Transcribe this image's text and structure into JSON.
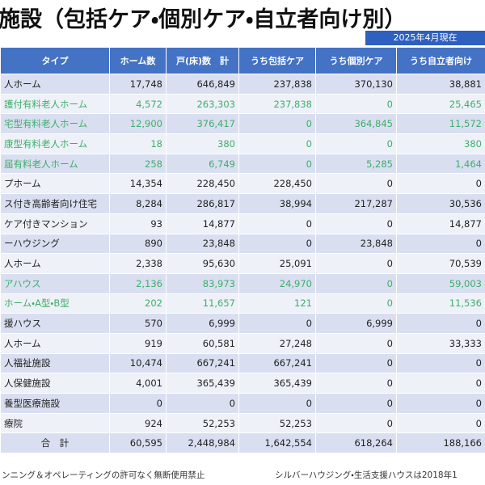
{
  "header": {
    "title": "施設（包括ケア・個別ケア・自立者向け別）",
    "date": "2025年4月現在"
  },
  "table": {
    "columns": [
      "タイプ",
      "ホーム数",
      "戸(床)数　計",
      "うち包括ケア",
      "うち個別ケア",
      "うち自立者向け"
    ],
    "rows": [
      {
        "cells": [
          "人ホーム",
          "17,748",
          "646,849",
          "237,838",
          "370,130",
          "38,881"
        ],
        "color": "#222222"
      },
      {
        "cells": [
          "護付有料老人ホーム",
          "4,572",
          "263,303",
          "237,838",
          "0",
          "25,465"
        ],
        "color": "#3fae6a"
      },
      {
        "cells": [
          "宅型有料老人ホーム",
          "12,900",
          "376,417",
          "0",
          "364,845",
          "11,572"
        ],
        "color": "#3fae6a"
      },
      {
        "cells": [
          "康型有料老人ホーム",
          "18",
          "380",
          "0",
          "0",
          "380"
        ],
        "color": "#3fae6a"
      },
      {
        "cells": [
          "届有料老人ホーム",
          "258",
          "6,749",
          "0",
          "5,285",
          "1,464"
        ],
        "color": "#3fae6a"
      },
      {
        "cells": [
          "プホーム",
          "14,354",
          "228,450",
          "228,450",
          "0",
          "0"
        ],
        "color": "#222222"
      },
      {
        "cells": [
          "ス付き高齢者向け住宅",
          "8,284",
          "286,817",
          "38,994",
          "217,287",
          "30,536"
        ],
        "color": "#222222"
      },
      {
        "cells": [
          "ケア付きマンション",
          "93",
          "14,877",
          "0",
          "0",
          "14,877"
        ],
        "color": "#222222"
      },
      {
        "cells": [
          "ーハウジング",
          "890",
          "23,848",
          "0",
          "23,848",
          "0"
        ],
        "color": "#222222"
      },
      {
        "cells": [
          "人ホーム",
          "2,338",
          "95,630",
          "25,091",
          "0",
          "70,539"
        ],
        "color": "#222222"
      },
      {
        "cells": [
          "アハウス",
          "2,136",
          "83,973",
          "24,970",
          "0",
          "59,003"
        ],
        "color": "#3fae6a"
      },
      {
        "cells": [
          "ホーム・A型・B型",
          "202",
          "11,657",
          "121",
          "0",
          "11,536"
        ],
        "color": "#3fae6a"
      },
      {
        "cells": [
          "援ハウス",
          "570",
          "6,999",
          "0",
          "6,999",
          "0"
        ],
        "color": "#222222"
      },
      {
        "cells": [
          "人ホーム",
          "919",
          "60,581",
          "27,248",
          "0",
          "33,333"
        ],
        "color": "#222222"
      },
      {
        "cells": [
          "人福祉施設",
          "10,474",
          "667,241",
          "667,241",
          "0",
          "0"
        ],
        "color": "#222222"
      },
      {
        "cells": [
          "人保健施設",
          "4,001",
          "365,439",
          "365,439",
          "0",
          "0"
        ],
        "color": "#222222"
      },
      {
        "cells": [
          "養型医療施設",
          "0",
          "0",
          "0",
          "0",
          "0"
        ],
        "color": "#222222"
      },
      {
        "cells": [
          "療院",
          "924",
          "52,253",
          "52,253",
          "0",
          "0"
        ],
        "color": "#222222"
      },
      {
        "cells": [
          "合　計",
          "60,595",
          "2,448,984",
          "1,642,554",
          "618,264",
          "188,166"
        ],
        "color": "#222222"
      }
    ]
  },
  "footer": {
    "left": "ンニング＆オペレーティングの許可なく無断使用禁止",
    "right": "シルバーハウジング・生活支援ハウスは2018年1"
  }
}
